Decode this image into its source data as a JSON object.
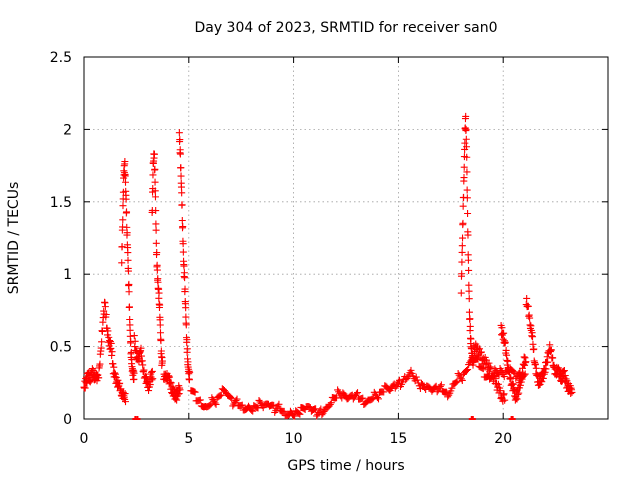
{
  "chart_data": {
    "type": "scatter",
    "title": "Day 304 of 2023, SRMTID for receiver san0",
    "xlabel": "GPS time / hours",
    "ylabel": "SRMTID / TECUs",
    "xlim": [
      0,
      25
    ],
    "ylim": [
      0,
      2.5
    ],
    "xticks": [
      0,
      5,
      10,
      15,
      20
    ],
    "yticks": [
      0,
      0.5,
      1,
      1.5,
      2,
      2.5
    ],
    "xtick_labels": [
      "0",
      "5",
      "10",
      "15",
      "20"
    ],
    "ytick_labels": [
      "0",
      "0.5",
      "1",
      "1.5",
      "2",
      "2.5"
    ],
    "grid": true,
    "marker": "+",
    "series": [
      {
        "name": "SRMTID",
        "color": "#ff0000",
        "segments": [
          {
            "start": 0.0,
            "step": 0.1,
            "values": [
              0.22,
              0.26,
              0.3,
              0.28,
              0.32,
              0.3,
              0.28,
              0.31,
              0.45,
              0.68,
              0.8,
              0.62,
              0.52,
              0.5,
              0.34,
              0.28,
              0.25,
              0.22,
              0.18,
              0.15
            ]
          },
          {
            "start": 1.8,
            "step": 0.05,
            "values": [
              1.1,
              1.4,
              1.7,
              1.75,
              1.55,
              1.3,
              1.1,
              0.85,
              0.6,
              0.45,
              0.35,
              0.3
            ]
          },
          {
            "start": 2.4,
            "step": 0.1,
            "values": [
              0.55,
              0.45,
              0.4,
              0.5,
              0.35,
              0.3,
              0.25,
              0.22,
              0.3
            ]
          },
          {
            "start": 3.25,
            "step": 0.05,
            "values": [
              1.4,
              1.75,
              1.85,
              1.6,
              1.2,
              1.0,
              0.9,
              0.8,
              0.6,
              0.4
            ]
          },
          {
            "start": 3.8,
            "step": 0.1,
            "values": [
              0.3,
              0.28,
              0.3,
              0.25,
              0.2,
              0.18,
              0.15,
              0.2
            ]
          },
          {
            "start": 4.55,
            "step": 0.05,
            "values": [
              1.97,
              1.8,
              1.6,
              1.35,
              1.1,
              0.95,
              0.75,
              0.55,
              0.4,
              0.3
            ]
          },
          {
            "start": 5.1,
            "step": 0.25,
            "values": [
              0.2,
              0.15,
              0.12,
              0.1,
              0.14,
              0.12,
              0.18,
              0.15,
              0.1,
              0.12,
              0.09,
              0.1,
              0.08,
              0.1,
              0.07,
              0.08,
              0.06,
              0.09,
              0.05,
              0.06,
              0.04,
              0.05,
              0.06,
              0.05,
              0.04,
              0.06,
              0.1,
              0.15,
              0.18,
              0.15,
              0.12,
              0.14,
              0.16,
              0.13,
              0.15,
              0.18,
              0.16,
              0.2,
              0.18,
              0.22,
              0.25,
              0.3,
              0.35,
              0.28,
              0.22,
              0.2,
              0.18,
              0.2,
              0.22,
              0.18,
              0.25,
              0.3,
              0.28,
              0.35,
              0.4,
              0.38,
              0.32,
              0.3,
              0.35,
              0.33,
              0.3,
              0.32,
              0.28,
              0.3
            ]
          },
          {
            "start": 18.0,
            "step": 0.05,
            "values": [
              0.9,
              1.2,
              1.5,
              1.8,
              2.1,
              1.9,
              1.4,
              1.0,
              0.7,
              0.55,
              0.45,
              0.4
            ]
          },
          {
            "start": 18.6,
            "step": 0.15,
            "values": [
              0.5,
              0.48,
              0.45,
              0.42,
              0.38,
              0.35,
              0.3,
              0.25,
              0.2,
              0.15
            ]
          },
          {
            "start": 19.9,
            "step": 0.1,
            "values": [
              0.62,
              0.58,
              0.5,
              0.4,
              0.3,
              0.25,
              0.2,
              0.15,
              0.18,
              0.25,
              0.3,
              0.4
            ]
          },
          {
            "start": 21.1,
            "step": 0.1,
            "values": [
              0.82,
              0.75,
              0.65,
              0.55,
              0.4,
              0.3,
              0.25,
              0.28,
              0.3,
              0.35,
              0.4,
              0.5,
              0.45,
              0.38,
              0.3,
              0.35,
              0.3,
              0.28,
              0.32,
              0.25,
              0.22,
              0.2
            ]
          }
        ]
      }
    ],
    "baseline_markers": [
      2.45,
      2.55,
      18.5,
      18.55,
      20.4,
      20.45
    ]
  }
}
